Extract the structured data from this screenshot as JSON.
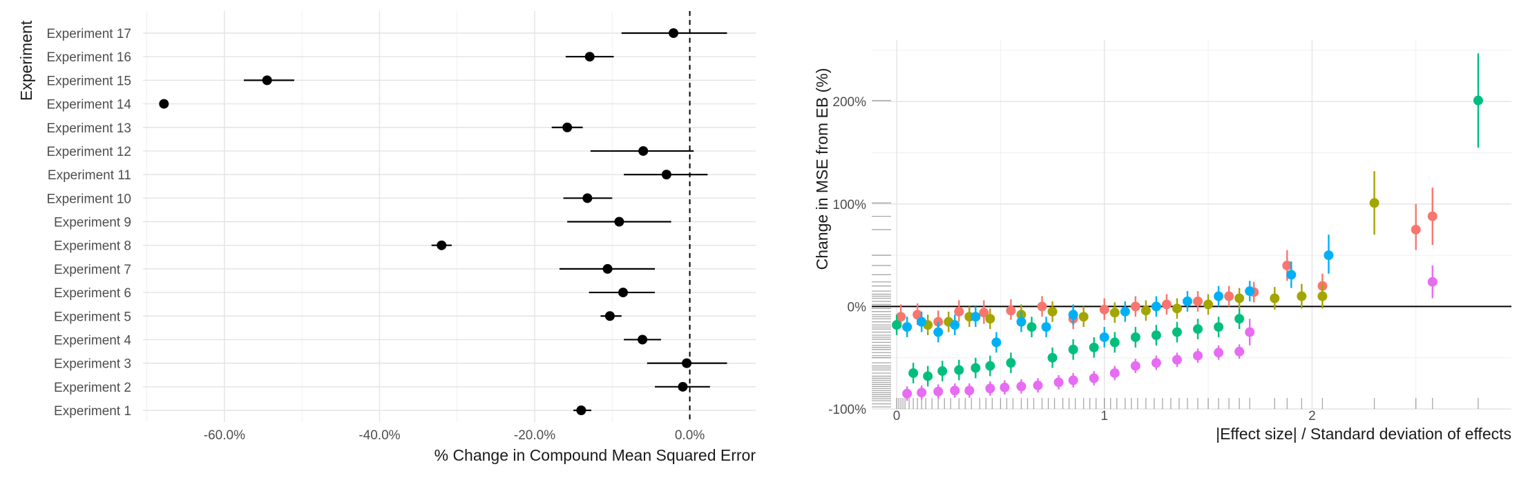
{
  "chart_data": [
    {
      "type": "scatter",
      "subtype": "dot-and-whisker",
      "title": "",
      "xlabel": "% Change in Compound Mean Squared Error",
      "ylabel": "Experiment",
      "xlim": [
        -70.5,
        8.5
      ],
      "x_ticks": [
        -60,
        -40,
        -20,
        0
      ],
      "x_tick_labels": [
        "-60.0%",
        "-40.0%",
        "-20.0%",
        "0.0%"
      ],
      "reference_line": {
        "x": 0,
        "style": "dashed"
      },
      "grid": true,
      "point_color": "#000000",
      "categories": [
        "Experiment 1",
        "Experiment 2",
        "Experiment 3",
        "Experiment 4",
        "Experiment 5",
        "Experiment 6",
        "Experiment 7",
        "Experiment 8",
        "Experiment 9",
        "Experiment 10",
        "Experiment 11",
        "Experiment 12",
        "Experiment 13",
        "Experiment 14",
        "Experiment 15",
        "Experiment 16",
        "Experiment 17"
      ],
      "estimates": [
        -14.0,
        -0.9,
        -0.4,
        -6.1,
        -10.3,
        -8.6,
        -10.6,
        -32.0,
        -9.1,
        -13.2,
        -3.0,
        -6.0,
        -15.8,
        -67.8,
        -54.5,
        -12.9,
        -2.1
      ],
      "lower": [
        -15.0,
        -4.5,
        -5.5,
        -8.5,
        -11.5,
        -13.0,
        -16.8,
        -33.3,
        -15.8,
        -16.3,
        -8.5,
        -12.8,
        -17.8,
        -67.8,
        -57.5,
        -16.0,
        -8.8
      ],
      "upper": [
        -12.7,
        2.6,
        4.8,
        -3.7,
        -8.8,
        -4.5,
        -4.5,
        -30.7,
        -2.4,
        -10.0,
        2.3,
        0.5,
        -13.8,
        -67.8,
        -51.0,
        -9.8,
        4.8
      ]
    },
    {
      "type": "scatter",
      "subtype": "point-range with rug",
      "title": "",
      "xlabel": "|Effect size| / Standard deviation of effects",
      "ylabel": "Change in MSE from EB (%)",
      "xlim": [
        -0.12,
        2.96
      ],
      "ylim": [
        -100,
        260
      ],
      "x_ticks": [
        0,
        1,
        2
      ],
      "x_tick_labels": [
        "0",
        "1",
        "2"
      ],
      "y_ticks": [
        -100,
        0,
        100,
        200
      ],
      "y_tick_labels": [
        "-100%",
        "0%",
        "100%",
        "200%"
      ],
      "reference_line": {
        "y": 0,
        "style": "solid"
      },
      "grid": true,
      "legend": "none",
      "palette": [
        "#F8766D",
        "#A3A500",
        "#00BF7D",
        "#00B0F6",
        "#E76BF3"
      ],
      "series": [
        {
          "color": "#F8766D",
          "x": [
            0.02,
            0.1,
            0.2,
            0.3,
            0.42,
            0.55,
            0.7,
            0.85,
            1.0,
            1.15,
            1.3,
            1.45,
            1.6,
            1.72,
            1.88,
            2.05,
            2.5,
            2.58
          ],
          "y": [
            -10,
            -8,
            -15,
            -5,
            -6,
            -4,
            0,
            -12,
            -3,
            0,
            2,
            5,
            10,
            14,
            40,
            20,
            75,
            88
          ],
          "lower": [
            -20,
            -18,
            -24,
            -15,
            -17,
            -13,
            -10,
            -22,
            -13,
            -10,
            -8,
            -5,
            0,
            4,
            25,
            8,
            55,
            60
          ],
          "upper": [
            2,
            3,
            -4,
            6,
            6,
            7,
            10,
            -1,
            8,
            10,
            12,
            15,
            20,
            24,
            55,
            32,
            100,
            116
          ]
        },
        {
          "color": "#A3A500",
          "x": [
            0.05,
            0.15,
            0.25,
            0.35,
            0.45,
            0.6,
            0.75,
            0.9,
            1.05,
            1.2,
            1.35,
            1.5,
            1.65,
            1.82,
            1.95,
            2.05,
            2.3
          ],
          "y": [
            -20,
            -18,
            -15,
            -10,
            -12,
            -8,
            -5,
            -10,
            -6,
            -4,
            -2,
            2,
            8,
            8,
            10,
            10,
            101
          ],
          "lower": [
            -30,
            -28,
            -25,
            -20,
            -22,
            -18,
            -15,
            -20,
            -16,
            -14,
            -12,
            -8,
            -2,
            -3,
            -2,
            -2,
            70
          ],
          "upper": [
            -10,
            -8,
            -5,
            0,
            -2,
            2,
            5,
            0,
            4,
            6,
            8,
            12,
            18,
            19,
            22,
            22,
            132
          ]
        },
        {
          "color": "#00BF7D",
          "x": [
            0.0,
            0.08,
            0.15,
            0.22,
            0.3,
            0.38,
            0.45,
            0.55,
            0.65,
            0.75,
            0.85,
            0.95,
            1.05,
            1.15,
            1.25,
            1.35,
            1.45,
            1.55,
            1.65,
            2.8
          ],
          "y": [
            -18,
            -65,
            -68,
            -63,
            -62,
            -60,
            -58,
            -55,
            -20,
            -50,
            -42,
            -40,
            -35,
            -30,
            -28,
            -25,
            -22,
            -20,
            -12,
            201
          ],
          "lower": [
            -28,
            -75,
            -78,
            -73,
            -72,
            -70,
            -68,
            -65,
            -30,
            -60,
            -52,
            -50,
            -45,
            -40,
            -38,
            -35,
            -32,
            -30,
            -22,
            155
          ],
          "upper": [
            -8,
            -55,
            -58,
            -53,
            -52,
            -50,
            -48,
            -45,
            -10,
            -40,
            -32,
            -30,
            -25,
            -20,
            -18,
            -15,
            -12,
            -10,
            -2,
            247
          ]
        },
        {
          "color": "#00B0F6",
          "x": [
            0.05,
            0.12,
            0.2,
            0.28,
            0.38,
            0.48,
            0.6,
            0.72,
            0.85,
            1.0,
            1.1,
            1.25,
            1.4,
            1.55,
            1.7,
            1.9,
            2.08
          ],
          "y": [
            -20,
            -15,
            -25,
            -18,
            -10,
            -35,
            -15,
            -20,
            -8,
            -30,
            -5,
            0,
            5,
            10,
            15,
            31,
            50
          ],
          "lower": [
            -30,
            -25,
            -35,
            -28,
            -20,
            -45,
            -25,
            -30,
            -18,
            -40,
            -15,
            -10,
            -5,
            0,
            5,
            18,
            32
          ],
          "upper": [
            -10,
            -5,
            -15,
            -8,
            0,
            -25,
            -5,
            -10,
            2,
            -20,
            5,
            10,
            15,
            20,
            25,
            44,
            70
          ]
        },
        {
          "color": "#E76BF3",
          "x": [
            0.05,
            0.12,
            0.2,
            0.28,
            0.35,
            0.45,
            0.52,
            0.6,
            0.68,
            0.78,
            0.85,
            0.95,
            1.05,
            1.15,
            1.25,
            1.35,
            1.45,
            1.55,
            1.65,
            1.7,
            2.58
          ],
          "y": [
            -85,
            -84,
            -83,
            -82,
            -82,
            -80,
            -79,
            -78,
            -77,
            -74,
            -72,
            -70,
            -65,
            -58,
            -55,
            -52,
            -48,
            -45,
            -44,
            -25,
            24
          ],
          "lower": [
            -92,
            -91,
            -90,
            -89,
            -89,
            -87,
            -86,
            -85,
            -84,
            -81,
            -79,
            -77,
            -72,
            -65,
            -62,
            -59,
            -55,
            -52,
            -51,
            -38,
            8
          ],
          "upper": [
            -78,
            -77,
            -76,
            -75,
            -75,
            -73,
            -72,
            -71,
            -70,
            -67,
            -65,
            -63,
            -58,
            -51,
            -48,
            -45,
            -41,
            -38,
            -37,
            -12,
            40
          ]
        }
      ],
      "rug_x": [
        0.0,
        0.01,
        0.02,
        0.03,
        0.04,
        0.06,
        0.08,
        0.1,
        0.12,
        0.14,
        0.17,
        0.2,
        0.23,
        0.26,
        0.3,
        0.33,
        0.36,
        0.4,
        0.43,
        0.46,
        0.5,
        0.53,
        0.56,
        0.6,
        0.63,
        0.66,
        0.7,
        0.73,
        0.76,
        0.8,
        0.83,
        0.86,
        0.9,
        0.93,
        0.96,
        1.0,
        1.03,
        1.06,
        1.1,
        1.13,
        1.16,
        1.2,
        1.24,
        1.28,
        1.32,
        1.36,
        1.4,
        1.45,
        1.5,
        1.55,
        1.6,
        1.65,
        1.7,
        1.82,
        1.88,
        1.95,
        2.05,
        2.3,
        2.5,
        2.58,
        2.8
      ],
      "rug_y": [
        -98,
        -95,
        -92,
        -90,
        -88,
        -86,
        -84,
        -82,
        -80,
        -78,
        -76,
        -74,
        -72,
        -70,
        -68,
        -65,
        -62,
        -60,
        -58,
        -55,
        -50,
        -48,
        -45,
        -42,
        -40,
        -38,
        -35,
        -32,
        -30,
        -28,
        -25,
        -22,
        -20,
        -18,
        -15,
        -12,
        -10,
        -8,
        -5,
        -2,
        0,
        2,
        5,
        8,
        10,
        12,
        15,
        20,
        24,
        31,
        40,
        50,
        75,
        88,
        101,
        201
      ]
    }
  ]
}
